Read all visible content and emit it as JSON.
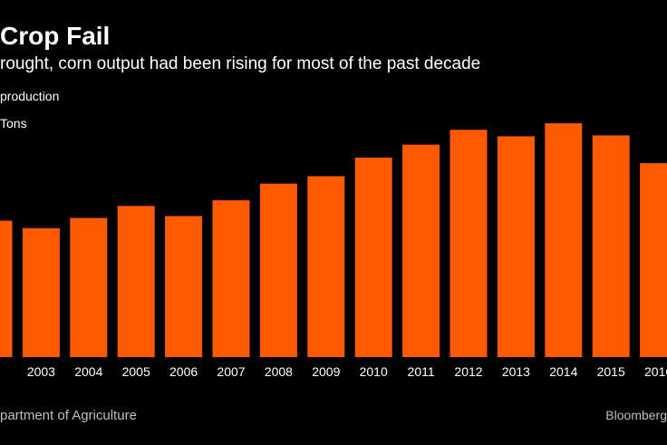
{
  "header": {
    "title": "Crop Fail",
    "subtitle": "rought, corn output had been rising for most of the past decade",
    "legend_label": "production",
    "unit_label": "Tons"
  },
  "footer": {
    "source": "partment of Agriculture",
    "credit": "Bloomberg"
  },
  "chart_data": {
    "type": "bar",
    "color": "#ff5a00",
    "categories": [
      "2",
      "2003",
      "2004",
      "2005",
      "2006",
      "2007",
      "2008",
      "2009",
      "2010",
      "2011",
      "2012",
      "2013",
      "2014",
      "2015",
      "2016"
    ],
    "values": [
      147,
      139,
      150,
      163,
      152,
      169,
      187,
      195,
      215,
      229,
      245,
      238,
      252,
      239,
      209
    ],
    "ylim": [
      0,
      255
    ],
    "grid": false
  }
}
